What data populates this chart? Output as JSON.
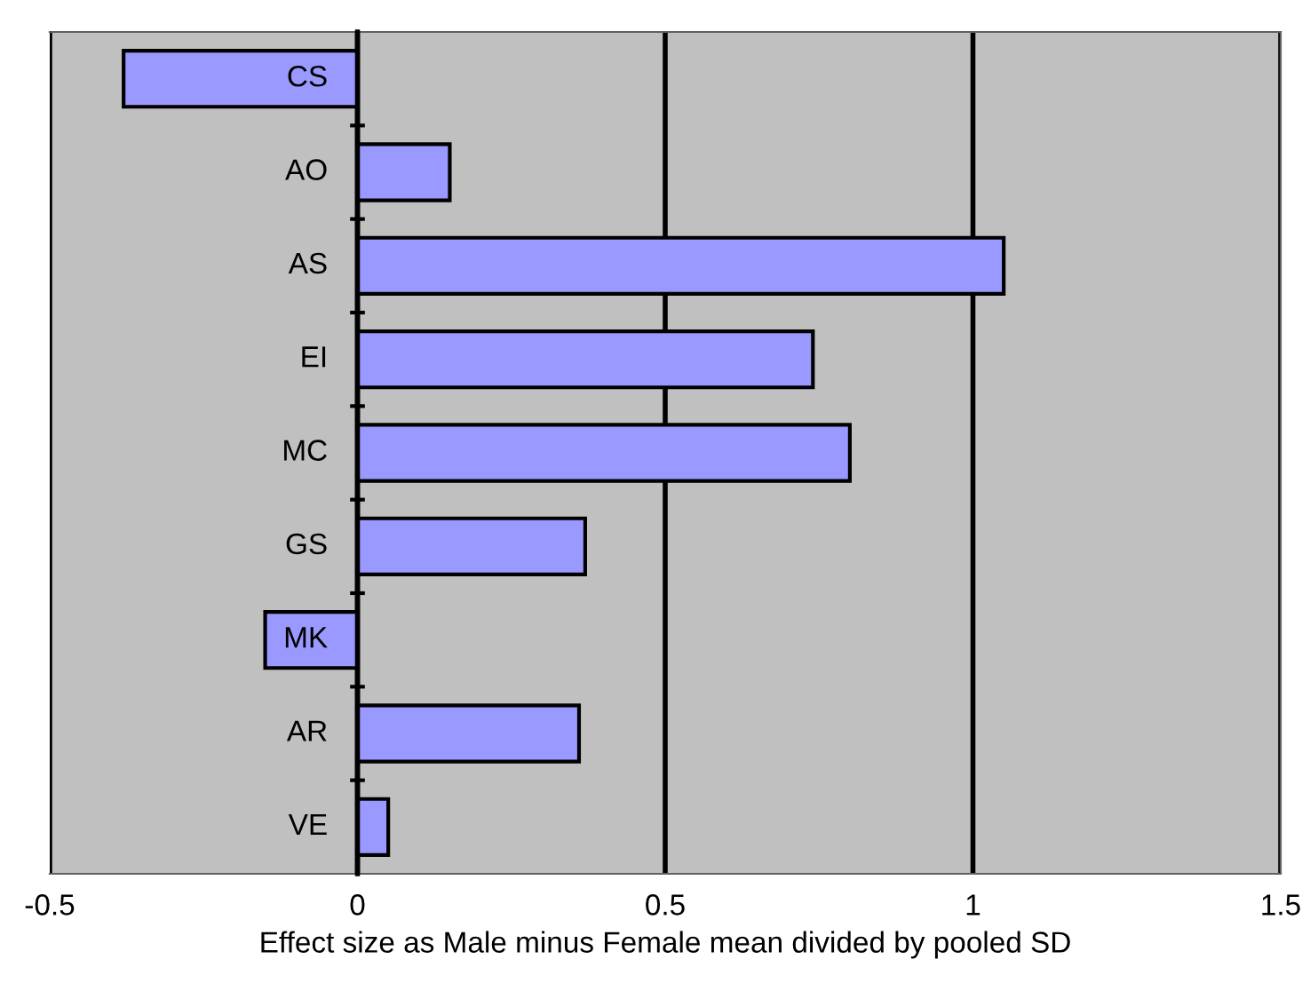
{
  "chart_data": {
    "type": "bar",
    "orientation": "horizontal",
    "xlabel": "Effect size as Male minus Female mean divided by pooled SD",
    "categories": [
      "CS",
      "AO",
      "AS",
      "EI",
      "MC",
      "GS",
      "MK",
      "AR",
      "VE"
    ],
    "values": [
      -0.38,
      0.15,
      1.05,
      0.74,
      0.8,
      0.37,
      -0.15,
      0.36,
      0.05
    ],
    "color": "#9999ff",
    "xlim": [
      -0.5,
      1.5
    ],
    "xticks": [
      -0.5,
      0,
      0.5,
      1,
      1.5
    ],
    "grid": "x"
  }
}
